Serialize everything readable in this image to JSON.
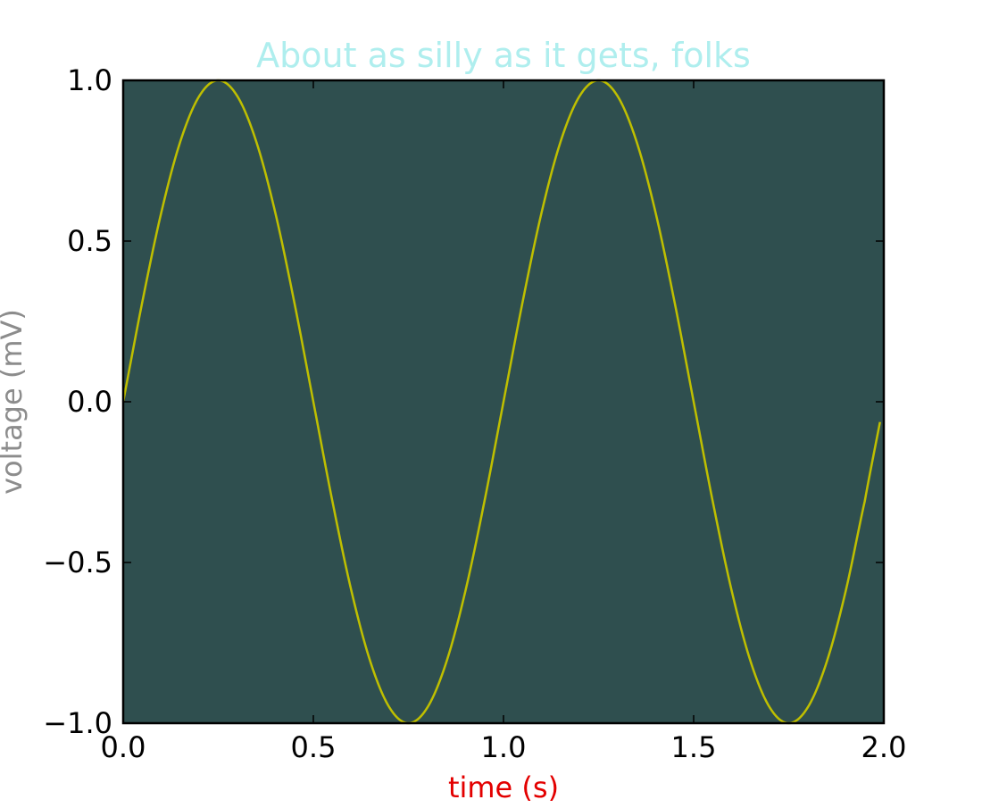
{
  "chart_data": {
    "type": "line",
    "title": "About as silly as it gets, folks",
    "xlabel": "time (s)",
    "ylabel": "voltage (mV)",
    "xlim": [
      0.0,
      2.0
    ],
    "ylim": [
      -1.0,
      1.0
    ],
    "xticks": [
      "0.0",
      "0.5",
      "1.0",
      "1.5",
      "2.0"
    ],
    "yticks": [
      "1.0",
      "0.5",
      "0.0",
      "−0.5",
      "−1.0"
    ],
    "grid": false,
    "series": [
      {
        "x": [
          0.0,
          0.05,
          0.1,
          0.15,
          0.2,
          0.25,
          0.3,
          0.35,
          0.4,
          0.45,
          0.5,
          0.55,
          0.6,
          0.65,
          0.7,
          0.75,
          0.8,
          0.85,
          0.9,
          0.95,
          1.0,
          1.05,
          1.1,
          1.15,
          1.2,
          1.25,
          1.3,
          1.35,
          1.4,
          1.45,
          1.5,
          1.55,
          1.6,
          1.65,
          1.7,
          1.75,
          1.8,
          1.85,
          1.9,
          1.95,
          1.99
        ],
        "y": [
          0.0,
          0.309,
          0.588,
          0.809,
          0.951,
          1.0,
          0.951,
          0.809,
          0.588,
          0.309,
          0.0,
          -0.309,
          -0.588,
          -0.809,
          -0.951,
          -1.0,
          -0.951,
          -0.809,
          -0.588,
          -0.309,
          0.0,
          0.309,
          0.588,
          0.809,
          0.951,
          1.0,
          0.951,
          0.809,
          0.588,
          0.309,
          0.0,
          -0.309,
          -0.588,
          -0.809,
          -0.951,
          -1.0,
          -0.951,
          -0.809,
          -0.588,
          -0.309,
          -0.063
        ],
        "color": "#bfbf00"
      }
    ]
  },
  "colors": {
    "title": "#afeeee",
    "xlabel": "#e30000",
    "ylabel": "#8c8c8c",
    "axes_background": "#2f4f4f",
    "frame": "#000000"
  }
}
